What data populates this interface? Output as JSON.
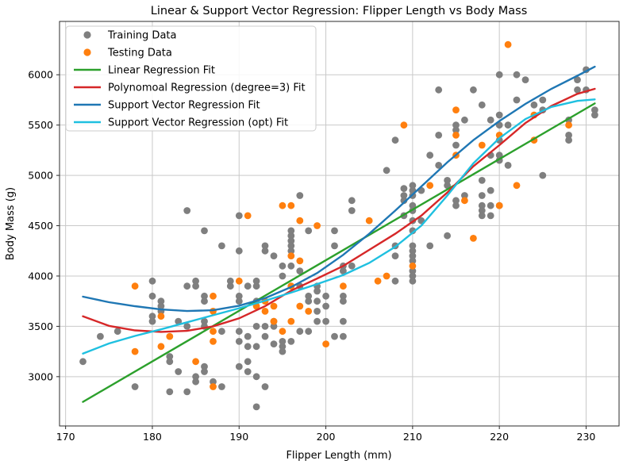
{
  "title": "Linear & Support Vector Regression: Flipper Length vs Body Mass",
  "axes": {
    "xlabel": "Flipper Length (mm)",
    "ylabel": "Body Mass (g)",
    "xticks": [
      170,
      180,
      190,
      200,
      210,
      220,
      230
    ],
    "yticks": [
      3000,
      3500,
      4000,
      4500,
      5000,
      5500,
      6000
    ]
  },
  "colors": {
    "training": "#7f7f7f",
    "testing": "#ff7f0e",
    "linear_fit": "#2ca02c",
    "poly_fit": "#d62728",
    "svr_fit": "#1f77b4",
    "svr_opt_fit": "#1fc0e0",
    "grid": "#c9c9c9",
    "spine": "#2b2b2b"
  },
  "chart_data": {
    "type": "scatter",
    "title": "Linear & Support Vector Regression: Flipper Length vs Body Mass",
    "xlabel": "Flipper Length (mm)",
    "ylabel": "Body Mass (g)",
    "xlim": [
      169.3,
      233.8
    ],
    "ylim": [
      2510,
      6530
    ],
    "grid": true,
    "legend_position": "upper left",
    "series": [
      {
        "name": "Training Data",
        "type": "scatter",
        "marker": "dot",
        "color": "#7f7f7f",
        "points": [
          [
            172,
            3150
          ],
          [
            174,
            3400
          ],
          [
            176,
            3450
          ],
          [
            178,
            2900
          ],
          [
            180,
            3950
          ],
          [
            180,
            3800
          ],
          [
            180,
            3600
          ],
          [
            180,
            3550
          ],
          [
            181,
            3750
          ],
          [
            181,
            3700
          ],
          [
            181,
            3650
          ],
          [
            182,
            3200
          ],
          [
            182,
            3150
          ],
          [
            182,
            2850
          ],
          [
            183,
            3550
          ],
          [
            183,
            3050
          ],
          [
            184,
            4650
          ],
          [
            184,
            3900
          ],
          [
            184,
            3500
          ],
          [
            184,
            2850
          ],
          [
            185,
            3950
          ],
          [
            185,
            3900
          ],
          [
            185,
            3000
          ],
          [
            185,
            2950
          ],
          [
            186,
            4450
          ],
          [
            186,
            3800
          ],
          [
            186,
            3750
          ],
          [
            186,
            3550
          ],
          [
            186,
            3500
          ],
          [
            186,
            3100
          ],
          [
            186,
            3050
          ],
          [
            187,
            2950
          ],
          [
            188,
            4300
          ],
          [
            188,
            3450
          ],
          [
            188,
            2900
          ],
          [
            189,
            3950
          ],
          [
            189,
            3900
          ],
          [
            190,
            4600
          ],
          [
            190,
            4250
          ],
          [
            190,
            3800
          ],
          [
            190,
            3750
          ],
          [
            190,
            3450
          ],
          [
            190,
            3350
          ],
          [
            190,
            3100
          ],
          [
            191,
            3900
          ],
          [
            191,
            3400
          ],
          [
            191,
            3300
          ],
          [
            191,
            3150
          ],
          [
            191,
            3050
          ],
          [
            192,
            3950
          ],
          [
            192,
            3900
          ],
          [
            192,
            3750
          ],
          [
            192,
            3500
          ],
          [
            192,
            3300
          ],
          [
            192,
            3000
          ],
          [
            192,
            2700
          ],
          [
            193,
            4300
          ],
          [
            193,
            4250
          ],
          [
            193,
            3500
          ],
          [
            193,
            3400
          ],
          [
            193,
            2900
          ],
          [
            194,
            4200
          ],
          [
            194,
            3550
          ],
          [
            194,
            3500
          ],
          [
            194,
            3325
          ],
          [
            195,
            4100
          ],
          [
            195,
            4000
          ],
          [
            195,
            3350
          ],
          [
            195,
            3300
          ],
          [
            195,
            3250
          ],
          [
            196,
            4450
          ],
          [
            196,
            4400
          ],
          [
            196,
            4350
          ],
          [
            196,
            4300
          ],
          [
            196,
            4250
          ],
          [
            196,
            4100
          ],
          [
            196,
            3900
          ],
          [
            196,
            3350
          ],
          [
            197,
            4800
          ],
          [
            197,
            4050
          ],
          [
            197,
            3900
          ],
          [
            197,
            3450
          ],
          [
            198,
            4450
          ],
          [
            198,
            3800
          ],
          [
            198,
            3750
          ],
          [
            198,
            3450
          ],
          [
            199,
            3900
          ],
          [
            199,
            3850
          ],
          [
            199,
            3750
          ],
          [
            199,
            3650
          ],
          [
            199,
            3550
          ],
          [
            200,
            3800
          ],
          [
            200,
            3700
          ],
          [
            200,
            3550
          ],
          [
            201,
            4450
          ],
          [
            201,
            4300
          ],
          [
            201,
            3400
          ],
          [
            202,
            4100
          ],
          [
            202,
            4050
          ],
          [
            202,
            3800
          ],
          [
            202,
            3750
          ],
          [
            202,
            3550
          ],
          [
            202,
            3400
          ],
          [
            203,
            4750
          ],
          [
            203,
            4650
          ],
          [
            203,
            4100
          ],
          [
            207,
            5050
          ],
          [
            208,
            5350
          ],
          [
            208,
            4300
          ],
          [
            208,
            4200
          ],
          [
            208,
            3950
          ],
          [
            209,
            4870
          ],
          [
            209,
            4800
          ],
          [
            209,
            4750
          ],
          [
            209,
            4600
          ],
          [
            210,
            4900
          ],
          [
            210,
            4850
          ],
          [
            210,
            4800
          ],
          [
            210,
            4700
          ],
          [
            210,
            4650
          ],
          [
            210,
            4550
          ],
          [
            210,
            4450
          ],
          [
            210,
            4300
          ],
          [
            210,
            4250
          ],
          [
            210,
            4200
          ],
          [
            210,
            4150
          ],
          [
            210,
            4050
          ],
          [
            210,
            4000
          ],
          [
            210,
            3950
          ],
          [
            211,
            4850
          ],
          [
            211,
            4550
          ],
          [
            212,
            5200
          ],
          [
            212,
            4300
          ],
          [
            213,
            5850
          ],
          [
            213,
            5400
          ],
          [
            213,
            5100
          ],
          [
            214,
            4950
          ],
          [
            214,
            4900
          ],
          [
            214,
            4400
          ],
          [
            215,
            5500
          ],
          [
            215,
            5450
          ],
          [
            215,
            5300
          ],
          [
            215,
            4750
          ],
          [
            215,
            4700
          ],
          [
            216,
            5550
          ],
          [
            216,
            4800
          ],
          [
            217,
            5850
          ],
          [
            218,
            5700
          ],
          [
            218,
            4950
          ],
          [
            218,
            4800
          ],
          [
            218,
            4700
          ],
          [
            218,
            4650
          ],
          [
            218,
            4600
          ],
          [
            219,
            5550
          ],
          [
            219,
            5200
          ],
          [
            219,
            4850
          ],
          [
            219,
            4700
          ],
          [
            219,
            4600
          ],
          [
            220,
            6000
          ],
          [
            220,
            5600
          ],
          [
            220,
            5500
          ],
          [
            220,
            5350
          ],
          [
            220,
            5200
          ],
          [
            220,
            5150
          ],
          [
            220,
            4700
          ],
          [
            221,
            5500
          ],
          [
            221,
            5100
          ],
          [
            222,
            6000
          ],
          [
            222,
            5750
          ],
          [
            223,
            5950
          ],
          [
            224,
            5700
          ],
          [
            225,
            5750
          ],
          [
            225,
            5650
          ],
          [
            225,
            5000
          ],
          [
            228,
            5550
          ],
          [
            228,
            5400
          ],
          [
            228,
            5350
          ],
          [
            229,
            5950
          ],
          [
            229,
            5850
          ],
          [
            230,
            6050
          ],
          [
            230,
            5850
          ],
          [
            231,
            5650
          ],
          [
            231,
            5600
          ]
        ]
      },
      {
        "name": "Testing Data",
        "type": "scatter",
        "marker": "dot",
        "color": "#ff7f0e",
        "points": [
          [
            178,
            3900
          ],
          [
            178,
            3250
          ],
          [
            181,
            3600
          ],
          [
            181,
            3300
          ],
          [
            182,
            3400
          ],
          [
            185,
            3150
          ],
          [
            187,
            3800
          ],
          [
            187,
            3650
          ],
          [
            187,
            3450
          ],
          [
            187,
            3350
          ],
          [
            187,
            2900
          ],
          [
            190,
            3950
          ],
          [
            191,
            4600
          ],
          [
            192,
            3700
          ],
          [
            193,
            3750
          ],
          [
            193,
            3650
          ],
          [
            194,
            3700
          ],
          [
            194,
            3550
          ],
          [
            195,
            4700
          ],
          [
            195,
            3450
          ],
          [
            196,
            4700
          ],
          [
            196,
            4200
          ],
          [
            196,
            3900
          ],
          [
            196,
            3550
          ],
          [
            197,
            4550
          ],
          [
            197,
            4150
          ],
          [
            197,
            3700
          ],
          [
            198,
            3650
          ],
          [
            199,
            4500
          ],
          [
            200,
            3325
          ],
          [
            202,
            3900
          ],
          [
            205,
            4550
          ],
          [
            206,
            3950
          ],
          [
            207,
            4000
          ],
          [
            209,
            5500
          ],
          [
            210,
            4100
          ],
          [
            212,
            4900
          ],
          [
            215,
            5650
          ],
          [
            215,
            5400
          ],
          [
            215,
            5200
          ],
          [
            216,
            4750
          ],
          [
            217,
            4375
          ],
          [
            218,
            5300
          ],
          [
            220,
            5400
          ],
          [
            220,
            4700
          ],
          [
            221,
            6300
          ],
          [
            222,
            4900
          ],
          [
            224,
            5600
          ],
          [
            224,
            5350
          ],
          [
            228,
            5500
          ]
        ]
      },
      {
        "name": "Linear Regression Fit",
        "type": "line",
        "marker": "line",
        "color": "#2ca02c",
        "points": [
          [
            172,
            2750
          ],
          [
            231,
            5715
          ]
        ]
      },
      {
        "name": "Polynomoal Regression (degree=3) Fit",
        "type": "line",
        "marker": "line",
        "color": "#d62728",
        "points": [
          [
            172,
            3600
          ],
          [
            175,
            3505
          ],
          [
            178,
            3460
          ],
          [
            181,
            3445
          ],
          [
            184,
            3455
          ],
          [
            187,
            3500
          ],
          [
            190,
            3580
          ],
          [
            193,
            3700
          ],
          [
            196,
            3855
          ],
          [
            199,
            3975
          ],
          [
            202,
            4100
          ],
          [
            205,
            4260
          ],
          [
            208,
            4420
          ],
          [
            211,
            4600
          ],
          [
            214,
            4830
          ],
          [
            217,
            5090
          ],
          [
            220,
            5300
          ],
          [
            223,
            5520
          ],
          [
            226,
            5690
          ],
          [
            229,
            5810
          ],
          [
            231,
            5860
          ]
        ]
      },
      {
        "name": "Support Vector Regression Fit",
        "type": "line",
        "marker": "line",
        "color": "#1f77b4",
        "points": [
          [
            172,
            3795
          ],
          [
            175,
            3740
          ],
          [
            178,
            3700
          ],
          [
            181,
            3668
          ],
          [
            184,
            3652
          ],
          [
            187,
            3660
          ],
          [
            190,
            3705
          ],
          [
            193,
            3780
          ],
          [
            196,
            3890
          ],
          [
            199,
            4030
          ],
          [
            202,
            4210
          ],
          [
            205,
            4420
          ],
          [
            208,
            4650
          ],
          [
            211,
            4890
          ],
          [
            214,
            5130
          ],
          [
            217,
            5350
          ],
          [
            220,
            5540
          ],
          [
            223,
            5710
          ],
          [
            226,
            5860
          ],
          [
            229,
            5990
          ],
          [
            231,
            6080
          ]
        ]
      },
      {
        "name": "Support Vector Regression (opt) Fit",
        "type": "line",
        "marker": "line",
        "color": "#1fc0e0",
        "points": [
          [
            172,
            3230
          ],
          [
            175,
            3330
          ],
          [
            178,
            3405
          ],
          [
            181,
            3470
          ],
          [
            184,
            3540
          ],
          [
            187,
            3610
          ],
          [
            190,
            3680
          ],
          [
            193,
            3755
          ],
          [
            196,
            3835
          ],
          [
            199,
            3920
          ],
          [
            202,
            4010
          ],
          [
            205,
            4130
          ],
          [
            208,
            4290
          ],
          [
            211,
            4500
          ],
          [
            214,
            4800
          ],
          [
            217,
            5120
          ],
          [
            220,
            5370
          ],
          [
            223,
            5560
          ],
          [
            226,
            5680
          ],
          [
            229,
            5740
          ],
          [
            231,
            5755
          ]
        ]
      }
    ]
  }
}
